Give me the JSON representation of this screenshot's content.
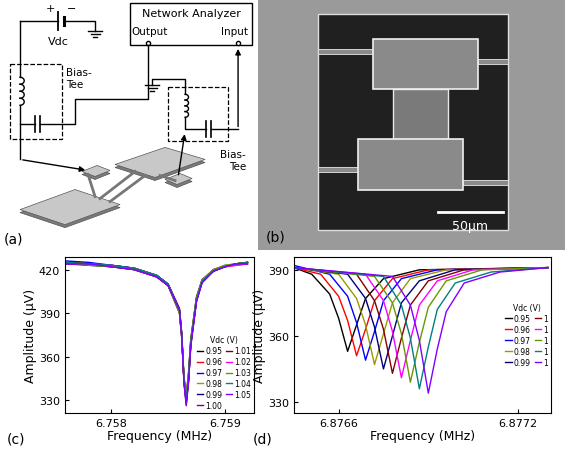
{
  "schematic": {
    "label": "(a)",
    "battery": {
      "plus": "+",
      "minus": "−",
      "label": "Vdc"
    },
    "analyzer": {
      "title": "Network Analyzer",
      "output": "Output",
      "input": "Input"
    },
    "bias_tees": [
      "Bias-\nTee",
      "Bias-\nTee"
    ]
  },
  "micrograph": {
    "label": "(b)",
    "scale_bar": "50μm"
  },
  "chart_data": [
    {
      "type": "line",
      "label": "(c)",
      "x_label": "Frequency (MHz)",
      "y_label": "Amplitude (μV)",
      "xlim": [
        6.75759,
        6.75926
      ],
      "ylim": [
        321,
        429
      ],
      "xticks": [
        6.758,
        6.759
      ],
      "yticks": [
        330,
        360,
        390,
        420
      ],
      "legend": "lower right",
      "legend_title": "Vdc (V)",
      "x": [
        6.7576,
        6.7578,
        6.758,
        6.7582,
        6.7584,
        6.7585,
        6.7586,
        6.75862,
        6.75864,
        6.75866,
        6.75868,
        6.7587,
        6.75875,
        6.7588,
        6.7589,
        6.759,
        6.7591,
        6.7592
      ],
      "series": [
        {
          "name": "0.95",
          "color": "#000000",
          "values": [
            425,
            424,
            423,
            421,
            416,
            410,
            393,
            376,
            346,
            331,
            344,
            369,
            399,
            412,
            419,
            422,
            424,
            425
          ]
        },
        {
          "name": "0.96",
          "color": "#ff0000",
          "values": [
            424,
            424,
            422,
            420,
            415,
            409,
            391,
            374,
            344,
            333,
            347,
            371,
            400,
            413,
            419,
            422,
            423,
            424
          ]
        },
        {
          "name": "0.97",
          "color": "#0000ff",
          "values": [
            426,
            425,
            423,
            421,
            416,
            410,
            392,
            375,
            343,
            329,
            343,
            368,
            398,
            412,
            419,
            422,
            424,
            425
          ]
        },
        {
          "name": "0.98",
          "color": "#999900",
          "values": [
            425,
            424,
            422,
            421,
            416,
            409,
            392,
            376,
            345,
            330,
            346,
            370,
            400,
            412,
            420,
            423,
            424,
            425
          ]
        },
        {
          "name": "0.99",
          "color": "#000080",
          "values": [
            424,
            423,
            422,
            420,
            415,
            409,
            390,
            373,
            344,
            332,
            348,
            372,
            401,
            413,
            420,
            422,
            424,
            424
          ]
        },
        {
          "name": "1.00",
          "color": "#800080",
          "values": [
            425,
            424,
            423,
            421,
            416,
            410,
            393,
            376,
            342,
            326,
            342,
            367,
            398,
            411,
            419,
            422,
            424,
            425
          ]
        },
        {
          "name": "1.01",
          "color": "#800000",
          "values": [
            425,
            424,
            422,
            421,
            415,
            409,
            392,
            375,
            343,
            328,
            344,
            369,
            399,
            412,
            419,
            422,
            424,
            425
          ]
        },
        {
          "name": "1.02",
          "color": "#ff00ff",
          "values": [
            424,
            424,
            423,
            420,
            415,
            410,
            391,
            374,
            344,
            330,
            346,
            370,
            400,
            412,
            420,
            422,
            423,
            424
          ]
        },
        {
          "name": "1.03",
          "color": "#669900",
          "values": [
            425,
            423,
            422,
            421,
            416,
            409,
            390,
            373,
            346,
            334,
            349,
            372,
            401,
            413,
            420,
            423,
            424,
            425
          ]
        },
        {
          "name": "1.04",
          "color": "#008080",
          "values": [
            425,
            424,
            423,
            421,
            416,
            410,
            392,
            375,
            344,
            331,
            345,
            369,
            399,
            412,
            419,
            422,
            424,
            425
          ]
        },
        {
          "name": "1.05",
          "color": "#8000ff",
          "values": [
            424,
            424,
            422,
            420,
            415,
            409,
            392,
            374,
            342,
            327,
            343,
            368,
            398,
            411,
            419,
            422,
            424,
            424
          ]
        }
      ]
    },
    {
      "type": "line",
      "label": "(d)",
      "x_label": "Frequency (MHz)",
      "y_label": "Amplitude (μV)",
      "xlim": [
        6.87645,
        6.87731
      ],
      "ylim": [
        325,
        396
      ],
      "xticks": [
        6.8766,
        6.8772
      ],
      "yticks": [
        330,
        360,
        390
      ],
      "legend": "center right",
      "legend_title": "Vdc (V)",
      "series": [
        {
          "name": "0.95",
          "color": "#000000",
          "x": [
            6.87645,
            6.87651,
            6.87657,
            6.8766,
            6.87663,
            6.87666,
            6.87669,
            6.87675,
            6.87687,
            6.8773
          ],
          "values": [
            391,
            388,
            379,
            368,
            353,
            365,
            377,
            386,
            390,
            391
          ]
        },
        {
          "name": "0.96",
          "color": "#ff0000",
          "x": [
            6.87645,
            6.87654,
            6.8766,
            6.87663,
            6.87666,
            6.87669,
            6.87672,
            6.87678,
            6.8769,
            6.8773
          ],
          "values": [
            391,
            388,
            378,
            367,
            351,
            363,
            376,
            386,
            390,
            391
          ]
        },
        {
          "name": "0.97",
          "color": "#0000ff",
          "x": [
            6.87645,
            6.87657,
            6.87663,
            6.87666,
            6.87669,
            6.87672,
            6.87675,
            6.87681,
            6.87693,
            6.8773
          ],
          "values": [
            392,
            388,
            378,
            366,
            349,
            362,
            376,
            386,
            390,
            391
          ]
        },
        {
          "name": "0.98",
          "color": "#999900",
          "x": [
            6.87645,
            6.8766,
            6.87666,
            6.87669,
            6.87672,
            6.87675,
            6.87678,
            6.87684,
            6.87696,
            6.8773
          ],
          "values": [
            391,
            388,
            377,
            365,
            347,
            361,
            375,
            386,
            390,
            391
          ]
        },
        {
          "name": "0.99",
          "color": "#000080",
          "x": [
            6.87645,
            6.87663,
            6.87669,
            6.87672,
            6.87675,
            6.87678,
            6.87681,
            6.87687,
            6.87699,
            6.8773
          ],
          "values": [
            391,
            388,
            377,
            364,
            345,
            360,
            375,
            385,
            390,
            391
          ]
        },
        {
          "name": "1",
          "color": "#800000",
          "x": [
            6.87645,
            6.87666,
            6.87672,
            6.87675,
            6.87678,
            6.87681,
            6.87684,
            6.8769,
            6.87702,
            6.8773
          ],
          "values": [
            391,
            388,
            376,
            363,
            343,
            359,
            374,
            385,
            390,
            391
          ]
        },
        {
          "name": "1",
          "color": "#ff00ff",
          "x": [
            6.87645,
            6.87669,
            6.87675,
            6.87678,
            6.87681,
            6.87684,
            6.87687,
            6.87693,
            6.87705,
            6.8773
          ],
          "values": [
            391,
            388,
            376,
            362,
            341,
            358,
            374,
            385,
            390,
            391
          ]
        },
        {
          "name": "1",
          "color": "#669900",
          "x": [
            6.87645,
            6.87672,
            6.87678,
            6.87681,
            6.87684,
            6.87687,
            6.8769,
            6.87696,
            6.87708,
            6.8773
          ],
          "values": [
            391,
            387,
            375,
            361,
            339,
            357,
            373,
            385,
            390,
            391
          ]
        },
        {
          "name": "1",
          "color": "#008080",
          "x": [
            6.87645,
            6.87675,
            6.87681,
            6.87684,
            6.87687,
            6.8769,
            6.87693,
            6.87699,
            6.87711,
            6.8773
          ],
          "values": [
            391,
            387,
            374,
            359,
            336,
            355,
            372,
            384,
            389,
            391
          ]
        },
        {
          "name": "1",
          "color": "#8000ff",
          "x": [
            6.87645,
            6.87678,
            6.87684,
            6.87687,
            6.8769,
            6.87693,
            6.87696,
            6.87702,
            6.87714,
            6.8773
          ],
          "values": [
            391,
            387,
            374,
            358,
            334,
            354,
            371,
            384,
            389,
            391
          ]
        }
      ]
    }
  ]
}
